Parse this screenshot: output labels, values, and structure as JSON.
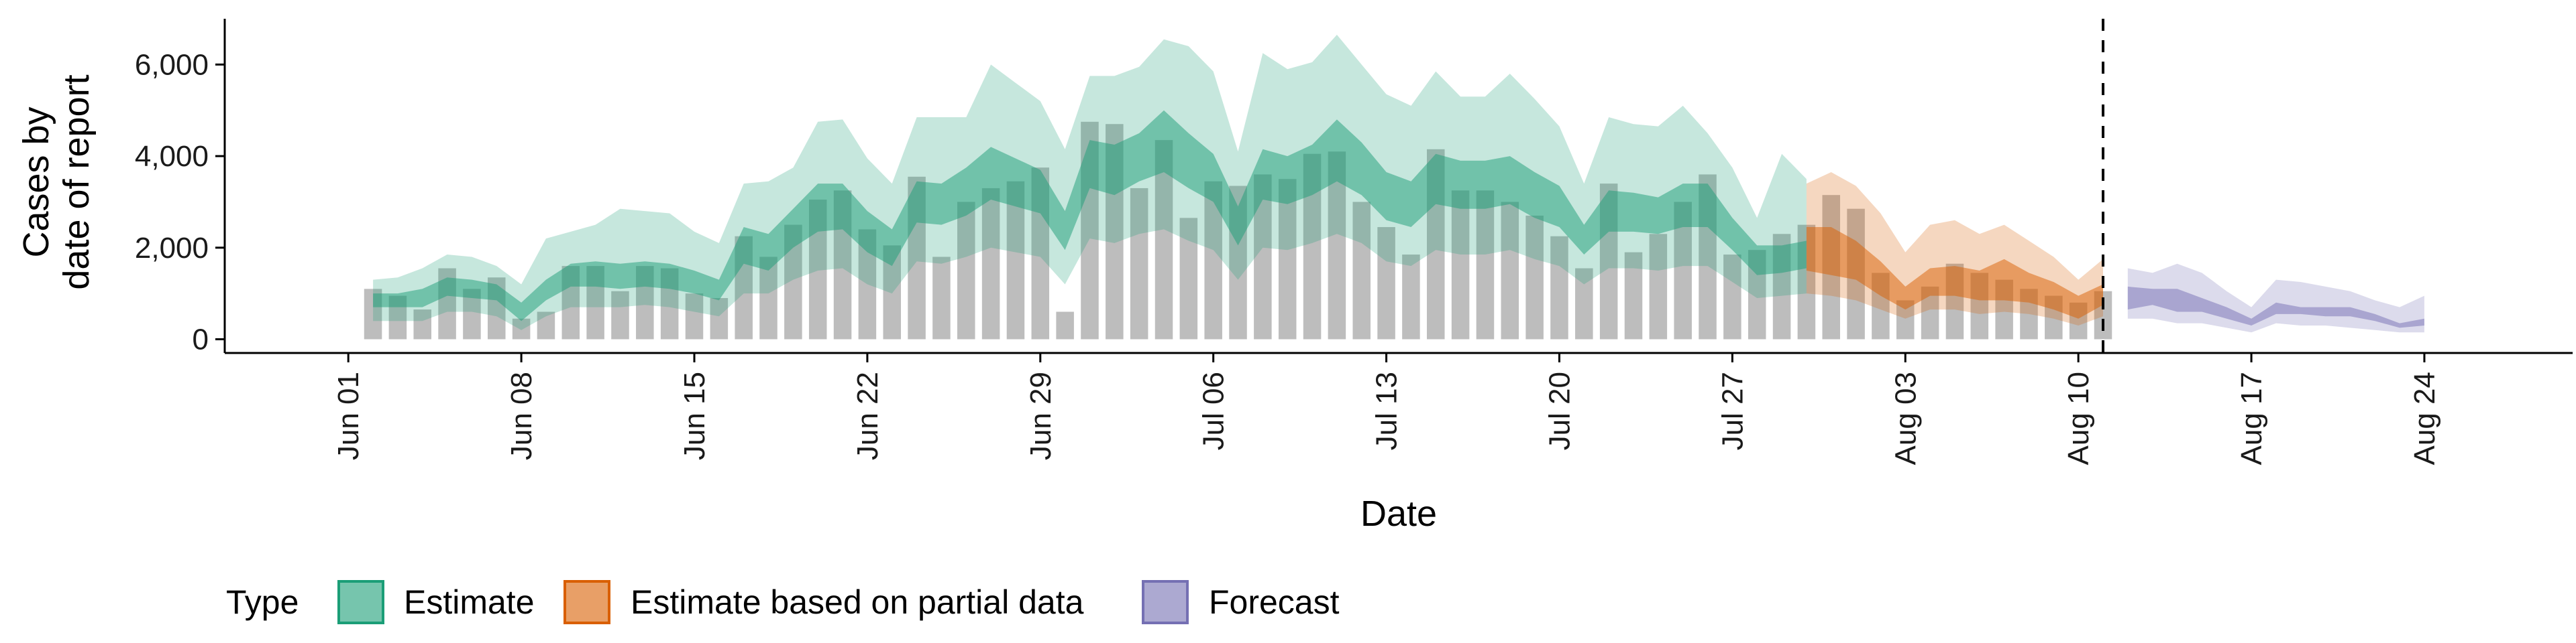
{
  "chart_data": {
    "type": "bar",
    "xlabel": "Date",
    "ylabel_lines": [
      "Cases by",
      "date of report"
    ],
    "ylim": [
      -300,
      7000
    ],
    "y_ticks": [
      0,
      2000,
      4000,
      6000
    ],
    "y_tick_labels": [
      "0",
      "2,000",
      "4,000",
      "6,000"
    ],
    "x_range_dates": [
      "2020-05-27",
      "2020-08-30"
    ],
    "x_ticks": [
      {
        "date": "2020-06-01",
        "label": "Jun 01"
      },
      {
        "date": "2020-06-08",
        "label": "Jun 08"
      },
      {
        "date": "2020-06-15",
        "label": "Jun 15"
      },
      {
        "date": "2020-06-22",
        "label": "Jun 22"
      },
      {
        "date": "2020-06-29",
        "label": "Jun 29"
      },
      {
        "date": "2020-07-06",
        "label": "Jul 06"
      },
      {
        "date": "2020-07-13",
        "label": "Jul 13"
      },
      {
        "date": "2020-07-20",
        "label": "Jul 20"
      },
      {
        "date": "2020-07-27",
        "label": "Jul 27"
      },
      {
        "date": "2020-08-03",
        "label": "Aug 03"
      },
      {
        "date": "2020-08-10",
        "label": "Aug 10"
      },
      {
        "date": "2020-08-17",
        "label": "Aug 17"
      },
      {
        "date": "2020-08-24",
        "label": "Aug 24"
      }
    ],
    "grid": false,
    "forecast_line_date": "2020-08-11",
    "bars": {
      "start_date": "2020-06-02",
      "color": "#bdbdbd",
      "values": [
        1100,
        950,
        650,
        1550,
        1100,
        1350,
        450,
        600,
        1600,
        1600,
        1050,
        1600,
        1550,
        1000,
        900,
        2250,
        1800,
        2500,
        3050,
        3250,
        2400,
        2050,
        3550,
        1800,
        3000,
        3300,
        3450,
        3750,
        600,
        4750,
        4700,
        3300,
        4350,
        2650,
        3450,
        3350,
        3600,
        3500,
        4050,
        4100,
        3000,
        2450,
        1850,
        4150,
        3250,
        3250,
        3000,
        2700,
        2250,
        1550,
        3400,
        1900,
        2300,
        3000,
        3600,
        1850,
        1950,
        2300,
        2500,
        3150,
        2850,
        1450,
        850,
        1150,
        1650,
        1450,
        1300,
        1100,
        950,
        800,
        1050
      ]
    },
    "series": [
      {
        "name": "Estimate",
        "color": "#1b9e77",
        "start_date": "2020-06-02",
        "inner_low": [
          700,
          700,
          700,
          950,
          900,
          850,
          400,
          850,
          1150,
          1150,
          1100,
          1150,
          1100,
          1000,
          850,
          1650,
          1500,
          2000,
          2350,
          2400,
          1900,
          1600,
          2550,
          2500,
          2700,
          3050,
          2900,
          2750,
          1950,
          3300,
          3150,
          3450,
          3650,
          3300,
          3000,
          2050,
          3050,
          2950,
          3150,
          3450,
          3150,
          2600,
          2450,
          2950,
          2850,
          2850,
          2950,
          2650,
          2450,
          1850,
          2350,
          2350,
          2300,
          2450,
          2450,
          1950,
          1400,
          1450,
          1550
        ],
        "inner_high": [
          1000,
          1000,
          1100,
          1350,
          1300,
          1200,
          800,
          1300,
          1650,
          1700,
          1650,
          1700,
          1650,
          1500,
          1300,
          2450,
          2300,
          2850,
          3400,
          3400,
          2800,
          2400,
          3450,
          3400,
          3750,
          4200,
          3950,
          3700,
          2800,
          4350,
          4250,
          4500,
          5000,
          4500,
          4050,
          2900,
          4150,
          4000,
          4250,
          4800,
          4300,
          3650,
          3450,
          4050,
          3900,
          3900,
          4000,
          3650,
          3350,
          2500,
          3250,
          3200,
          3100,
          3400,
          3400,
          2650,
          2050,
          2050,
          2150
        ],
        "outer_low": [
          400,
          400,
          400,
          600,
          600,
          500,
          200,
          500,
          700,
          700,
          700,
          750,
          700,
          600,
          500,
          1000,
          1000,
          1300,
          1500,
          1550,
          1200,
          1000,
          1700,
          1650,
          1800,
          2000,
          1900,
          1800,
          1200,
          2200,
          2100,
          2300,
          2400,
          2150,
          1950,
          1300,
          2000,
          1950,
          2100,
          2300,
          2100,
          1700,
          1600,
          1950,
          1850,
          1850,
          1950,
          1750,
          1600,
          1200,
          1550,
          1550,
          1500,
          1600,
          1600,
          1250,
          900,
          950,
          1000
        ],
        "outer_high": [
          1300,
          1350,
          1550,
          1850,
          1800,
          1600,
          1200,
          2200,
          2350,
          2500,
          2850,
          2800,
          2750,
          2350,
          2100,
          3400,
          3450,
          3750,
          4750,
          4800,
          3950,
          3400,
          4850,
          4850,
          4850,
          6000,
          5600,
          5200,
          4150,
          5750,
          5750,
          5950,
          6550,
          6400,
          5850,
          4100,
          6250,
          5900,
          6050,
          6650,
          6000,
          5350,
          5100,
          5850,
          5300,
          5300,
          5800,
          5250,
          4650,
          3400,
          4850,
          4700,
          4650,
          5100,
          4500,
          3750,
          2650,
          4050,
          3500
        ]
      },
      {
        "name": "Estimate based on partial data",
        "color": "#d95f02",
        "start_date": "2020-07-30",
        "inner_low": [
          1500,
          1400,
          1300,
          950,
          650,
          950,
          950,
          850,
          850,
          800,
          650,
          450,
          750
        ],
        "inner_high": [
          2450,
          2450,
          2150,
          1700,
          1150,
          1550,
          1600,
          1500,
          1750,
          1450,
          1250,
          950,
          1200
        ],
        "outer_low": [
          1000,
          950,
          850,
          650,
          450,
          650,
          650,
          550,
          600,
          550,
          450,
          300,
          500
        ],
        "outer_high": [
          3400,
          3650,
          3350,
          2750,
          1900,
          2500,
          2600,
          2300,
          2500,
          2150,
          1800,
          1300,
          1750
        ]
      },
      {
        "name": "Forecast",
        "color": "#7570b3",
        "start_date": "2020-08-12",
        "inner_low": [
          650,
          750,
          600,
          600,
          450,
          300,
          550,
          550,
          500,
          500,
          400,
          250,
          300
        ],
        "inner_high": [
          1150,
          1100,
          1100,
          900,
          700,
          450,
          800,
          700,
          700,
          700,
          550,
          350,
          450
        ],
        "outer_low": [
          450,
          450,
          350,
          350,
          250,
          150,
          350,
          300,
          300,
          250,
          200,
          150,
          150
        ],
        "outer_high": [
          1550,
          1450,
          1650,
          1450,
          1050,
          700,
          1300,
          1250,
          1150,
          1050,
          850,
          700,
          950
        ]
      }
    ],
    "legend": {
      "title": "Type",
      "position": "bottom",
      "items": [
        {
          "label": "Estimate",
          "color": "#1b9e77"
        },
        {
          "label": "Estimate based on partial data",
          "color": "#d95f02"
        },
        {
          "label": "Forecast",
          "color": "#7570b3"
        }
      ]
    }
  }
}
